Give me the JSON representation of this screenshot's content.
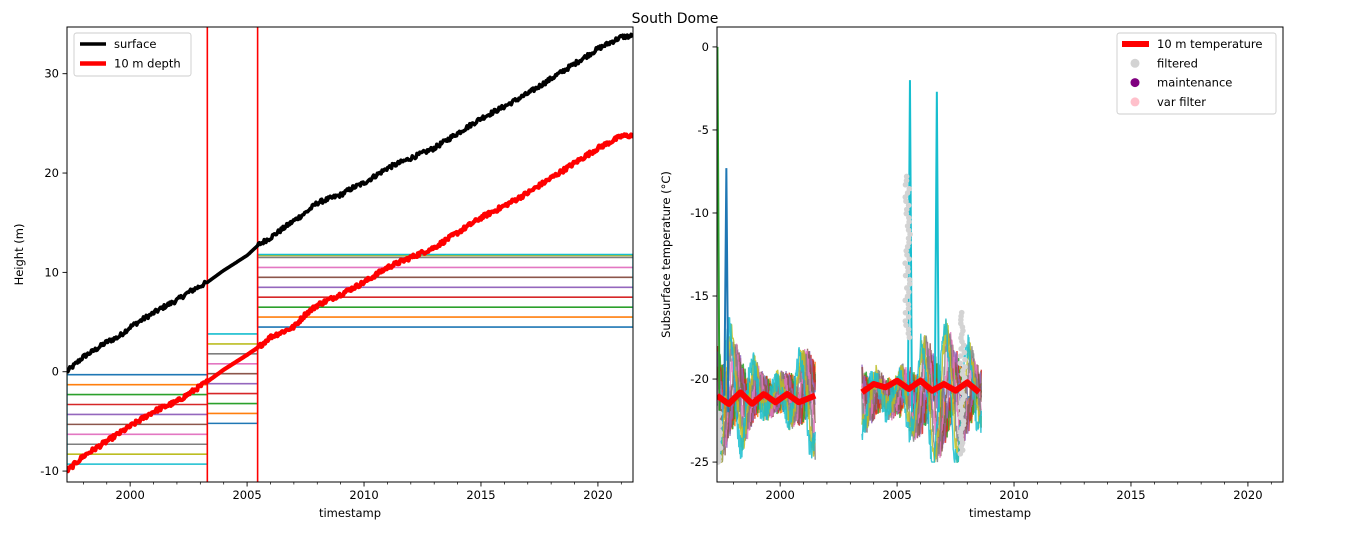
{
  "figure_title": "South Dome",
  "chart_data": [
    {
      "type": "line",
      "xlabel": "timestamp",
      "ylabel": "Height (m)",
      "xlim": [
        1997.3,
        2021.5
      ],
      "ylim": [
        -11.1,
        34.7
      ],
      "xticks": [
        2000,
        2005,
        2010,
        2015,
        2020
      ],
      "yticks": [
        -10,
        0,
        10,
        20,
        30
      ],
      "legend_position": "upper-left",
      "legend": [
        {
          "label": "surface",
          "color": "#000000"
        },
        {
          "label": "10 m depth",
          "color": "#ff0000"
        }
      ],
      "series": [
        {
          "name": "surface",
          "color": "#000000",
          "x": [
            1997.3,
            1998.0,
            1998.5,
            1999.0,
            1999.5,
            2000.0,
            2000.7,
            2001.5,
            2002.0,
            2002.5,
            2003.3,
            2004.0,
            2005.0,
            2005.5,
            2006.0,
            2007.0,
            2007.5,
            2008.0,
            2009.0,
            2009.5,
            2010.0,
            2011.0,
            2012.0,
            2013.0,
            2014.0,
            2015.0,
            2016.0,
            2017.0,
            2018.0,
            2019.0,
            2020.0,
            2021.0,
            2021.5
          ],
          "y": [
            0.0,
            1.5,
            2.2,
            3.0,
            3.5,
            4.5,
            5.5,
            6.6,
            7.2,
            8.0,
            9.0,
            10.2,
            11.7,
            12.8,
            13.5,
            15.2,
            16.0,
            17.0,
            17.8,
            18.5,
            19.0,
            20.5,
            21.5,
            22.5,
            24.0,
            25.5,
            26.7,
            28.0,
            29.5,
            31.0,
            32.5,
            33.7,
            33.8
          ]
        },
        {
          "name": "10 m depth",
          "color": "#ff0000",
          "x": [
            1997.3,
            1998.0,
            1999.0,
            2000.0,
            2001.0,
            2002.0,
            2003.3,
            2004.0,
            2005.0,
            2005.5,
            2006.0,
            2007.0,
            2007.5,
            2008.0,
            2009.0,
            2010.0,
            2011.0,
            2012.0,
            2013.0,
            2014.0,
            2015.0,
            2016.0,
            2017.0,
            2018.0,
            2019.0,
            2020.0,
            2021.0,
            2021.5
          ],
          "y": [
            -10.0,
            -8.5,
            -7.0,
            -5.5,
            -4.0,
            -3.0,
            -1.0,
            0.2,
            1.7,
            2.5,
            3.5,
            4.5,
            5.8,
            6.7,
            7.8,
            9.0,
            10.5,
            11.5,
            12.5,
            14.0,
            15.5,
            16.7,
            18.0,
            19.5,
            21.0,
            22.5,
            23.7,
            23.8
          ]
        }
      ],
      "vlines": {
        "x": [
          2003.3,
          2005.45
        ],
        "color": "#ff0000"
      },
      "depth_segments": [
        {
          "x": [
            1997.3,
            2003.3
          ],
          "colors": [
            "#1f77b4",
            "#ff7f0e",
            "#2ca02c",
            "#d62728",
            "#9467bd",
            "#8c564b",
            "#e377c2",
            "#7f7f7f",
            "#bcbd22",
            "#17becf"
          ],
          "levels": [
            -0.3,
            -1.3,
            -2.3,
            -3.3,
            -4.3,
            -5.3,
            -6.3,
            -7.3,
            -8.3,
            -9.3
          ]
        },
        {
          "x": [
            2003.3,
            2005.45
          ],
          "colors": [
            "#1f77b4",
            "#ff7f0e",
            "#2ca02c",
            "#d62728",
            "#9467bd",
            "#8c564b",
            "#e377c2",
            "#7f7f7f",
            "#bcbd22",
            "#17becf"
          ],
          "levels": [
            -5.2,
            -4.2,
            -3.2,
            -2.2,
            -1.2,
            -0.2,
            0.8,
            1.8,
            2.8,
            3.8
          ]
        },
        {
          "x": [
            2005.45,
            2021.5
          ],
          "colors": [
            "#1f77b4",
            "#ff7f0e",
            "#2ca02c",
            "#d62728",
            "#9467bd",
            "#8c564b",
            "#e377c2",
            "#7f7f7f",
            "#bcbd22",
            "#17becf"
          ],
          "levels": [
            4.5,
            5.5,
            6.5,
            7.5,
            8.5,
            9.5,
            10.5,
            11.5,
            11.7,
            11.8
          ]
        }
      ]
    },
    {
      "type": "line",
      "xlabel": "timestamp",
      "ylabel": "Subsurface temperature (°C)",
      "xlim": [
        1997.3,
        2021.5
      ],
      "ylim": [
        -26.2,
        1.2
      ],
      "xticks": [
        2000,
        2005,
        2010,
        2015,
        2020
      ],
      "yticks": [
        0,
        -5,
        -10,
        -15,
        -20,
        -25
      ],
      "legend_position": "upper-right",
      "legend": [
        {
          "label": "10 m temperature",
          "color": "#ff0000",
          "marker": "line"
        },
        {
          "label": "filtered",
          "color": "#d3d3d3",
          "marker": "dot"
        },
        {
          "label": "maintenance",
          "color": "#800080",
          "marker": "dot"
        },
        {
          "label": "var filter",
          "color": "#ffc0cb",
          "marker": "dot"
        }
      ],
      "series": [
        {
          "name": "10 m temperature",
          "color": "#ff0000",
          "segments": [
            {
              "x": [
                1997.3,
                1997.8,
                1998.3,
                1998.8,
                1999.3,
                1999.8,
                2000.3,
                2000.8,
                2001.5
              ],
              "y": [
                -21.0,
                -21.5,
                -20.8,
                -21.5,
                -20.9,
                -21.4,
                -20.9,
                -21.4,
                -21.0
              ]
            },
            {
              "x": [
                2003.5,
                2004.0,
                2004.5,
                2005.0,
                2005.5,
                2006.0,
                2006.5,
                2007.0,
                2007.5,
                2008.0,
                2008.5
              ],
              "y": [
                -20.8,
                -20.3,
                -20.5,
                -20.1,
                -20.6,
                -20.1,
                -20.7,
                -20.3,
                -20.7,
                -20.2,
                -20.8
              ]
            }
          ]
        }
      ],
      "sensor_colors": [
        "#1f77b4",
        "#ff7f0e",
        "#2ca02c",
        "#d62728",
        "#9467bd",
        "#8c564b",
        "#e377c2",
        "#7f7f7f",
        "#bcbd22",
        "#17becf"
      ],
      "sensor_periods": [
        {
          "x": [
            1997.3,
            2001.5
          ]
        },
        {
          "x": [
            2003.5,
            2008.6
          ]
        }
      ],
      "spikes": [
        {
          "x": 2005.55,
          "y_top": -2.0,
          "color": "#17becf"
        },
        {
          "x": 2006.7,
          "y_top": -2.7,
          "color": "#17becf"
        },
        {
          "x": 1997.7,
          "y_top": -7.3,
          "color": "#1f77b4"
        },
        {
          "x": 1997.32,
          "y_top": 0.0,
          "color": "#2ca02c"
        }
      ],
      "filtered_bands": [
        {
          "x": 2005.45,
          "y": [
            -17.5,
            -7.8
          ]
        },
        {
          "x": 2007.8,
          "y": [
            -24.5,
            -16.0
          ]
        },
        {
          "x": 1997.35,
          "y": [
            -25.0,
            -22.0
          ]
        }
      ]
    }
  ]
}
